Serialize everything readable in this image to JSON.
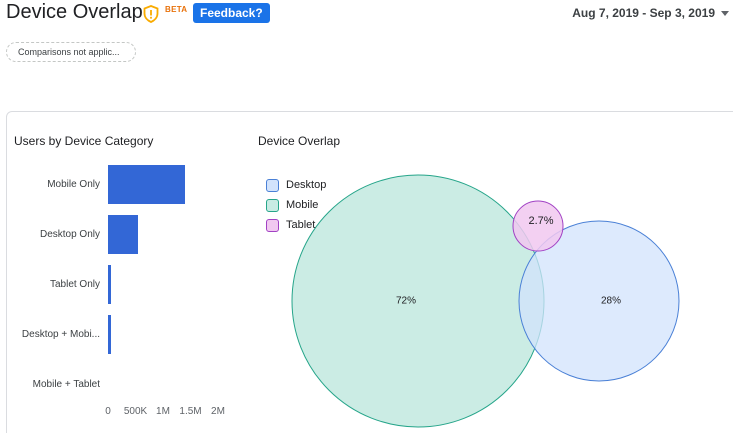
{
  "header": {
    "title": "Device Overlap",
    "beta_label": "BETA",
    "feedback_label": "Feedback?",
    "date_range": "Aug 7, 2019 - Sep 3, 2019"
  },
  "chip": {
    "label": "Comparisons not applic..."
  },
  "bar_chart": {
    "title": "Users by Device Category",
    "categories": [
      "Mobile Only",
      "Desktop Only",
      "Tablet Only",
      "Desktop + Mobi...",
      "Mobile + Tablet"
    ],
    "values": [
      1400000,
      540000,
      35000,
      30000,
      3000
    ],
    "x_ticks": [
      "0",
      "500K",
      "1M",
      "1.5M",
      "2M"
    ],
    "bar_color": "#3367d6"
  },
  "venn": {
    "title": "Device Overlap",
    "legend": [
      "Desktop",
      "Mobile",
      "Tablet"
    ],
    "labels": {
      "mobile": "72%",
      "desktop": "28%",
      "tablet": "2.7%"
    },
    "colors": {
      "desktop_fill": "#d2e3fc",
      "desktop_stroke": "#4a80d6",
      "mobile_fill": "#c8ebe3",
      "mobile_stroke": "#26a58a",
      "tablet_fill": "#f1c8f0",
      "tablet_stroke": "#a142c4"
    }
  },
  "chart_data": [
    {
      "type": "bar",
      "orientation": "horizontal",
      "title": "Users by Device Category",
      "categories": [
        "Mobile Only",
        "Desktop Only",
        "Tablet Only",
        "Desktop + Mobi...",
        "Mobile + Tablet"
      ],
      "values": [
        1400000,
        540000,
        35000,
        30000,
        3000
      ],
      "xlim": [
        0,
        2000000
      ]
    },
    {
      "type": "venn",
      "title": "Device Overlap",
      "sets": [
        {
          "name": "Mobile",
          "value": "72%"
        },
        {
          "name": "Desktop",
          "value": "28%"
        },
        {
          "name": "Tablet",
          "value": "2.7%"
        }
      ]
    }
  ]
}
